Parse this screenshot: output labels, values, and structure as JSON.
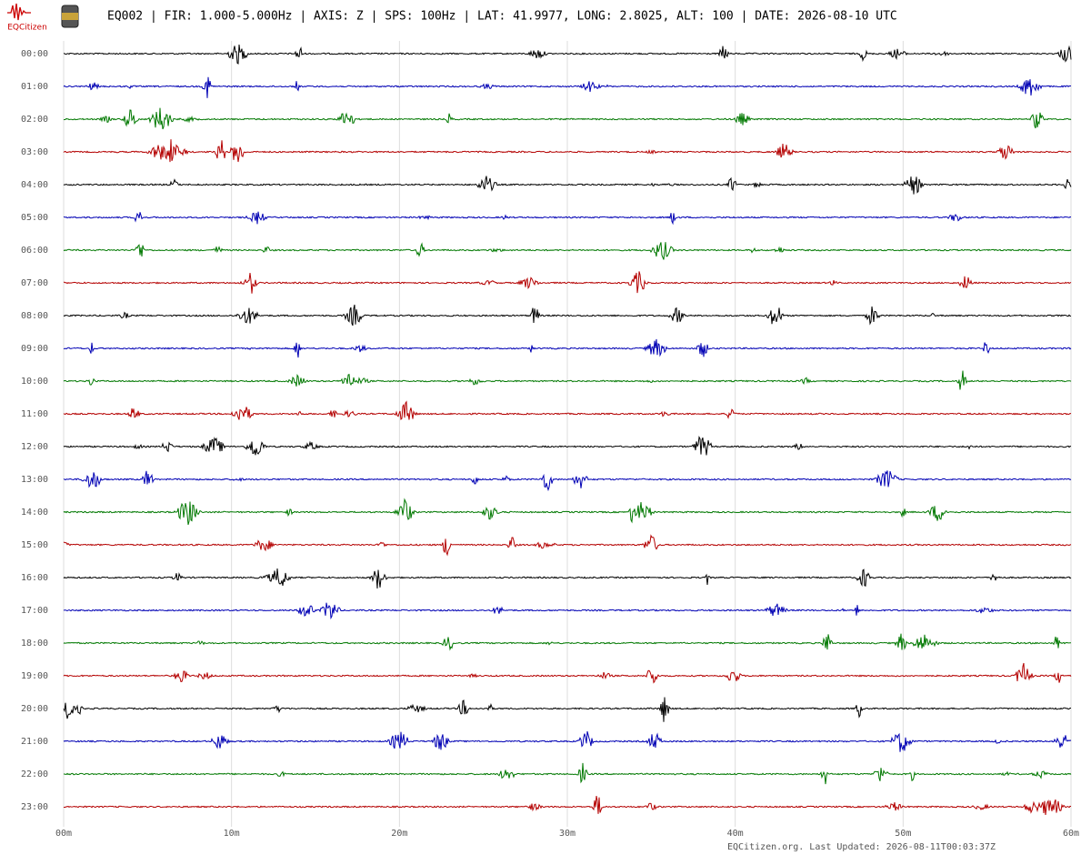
{
  "header": {
    "logo_text": "EQCitizen",
    "title": "EQ002 | FIR: 1.000-5.000Hz | AXIS: Z | SPS: 100Hz | LAT: 41.9977, LONG: 2.8025, ALT: 100 | DATE: 2026-08-10 UTC"
  },
  "rows": [
    "00:00",
    "01:00",
    "02:00",
    "03:00",
    "04:00",
    "05:00",
    "06:00",
    "07:00",
    "08:00",
    "09:00",
    "10:00",
    "11:00",
    "12:00",
    "13:00",
    "14:00",
    "15:00",
    "16:00",
    "17:00",
    "18:00",
    "19:00",
    "20:00",
    "21:00",
    "22:00",
    "23:00"
  ],
  "trace_colors": [
    "#000000",
    "#0000b4",
    "#007800",
    "#b40000"
  ],
  "x_axis": {
    "lim": [
      0,
      60
    ],
    "ticks": [
      {
        "value": 0,
        "label": "00m"
      },
      {
        "value": 10,
        "label": "10m"
      },
      {
        "value": 20,
        "label": "20m"
      },
      {
        "value": 30,
        "label": "30m"
      },
      {
        "value": 40,
        "label": "40m"
      },
      {
        "value": 50,
        "label": "50m"
      },
      {
        "value": 60,
        "label": "60m"
      }
    ]
  },
  "footer": "EQCitizen.org. Last Updated: 2026-08-11T00:03:37Z"
}
